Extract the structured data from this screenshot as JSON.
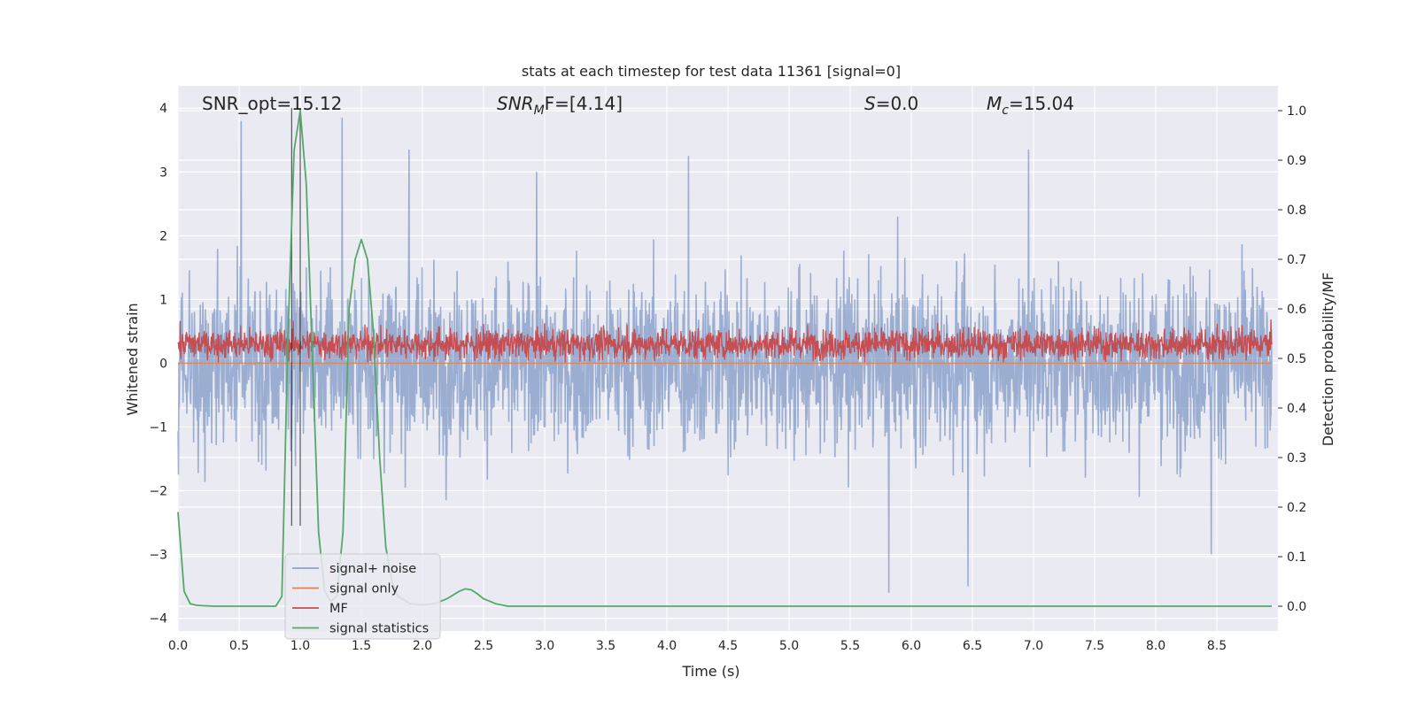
{
  "chart_data": {
    "type": "line",
    "title": "stats at each timestep for test data 11361 [signal=0]",
    "xlabel": "Time (s)",
    "ylabel_left": "Whitened strain",
    "ylabel_right": "Detection probability/MF",
    "xlim": [
      0.0,
      9.0
    ],
    "ylim_left": [
      -4.2,
      4.35
    ],
    "ylim_right": [
      -0.05,
      1.05
    ],
    "x_ticks": [
      "0.0",
      "0.5",
      "1.0",
      "1.5",
      "2.0",
      "2.5",
      "3.0",
      "3.5",
      "4.0",
      "4.5",
      "5.0",
      "5.5",
      "6.0",
      "6.5",
      "7.0",
      "7.5",
      "8.0",
      "8.5"
    ],
    "y_ticks_left": [
      "−4",
      "−3",
      "−2",
      "−1",
      "0",
      "1",
      "2",
      "3",
      "4"
    ],
    "y_ticks_right": [
      "0.0",
      "0.1",
      "0.2",
      "0.3",
      "0.4",
      "0.5",
      "0.6",
      "0.7",
      "0.8",
      "0.9",
      "1.0"
    ],
    "annotations": {
      "snr_opt": "SNR_opt=15.12",
      "snr_mf_main": "SNR",
      "snr_mf_sub": "M",
      "snr_mf_rest": "F=[4.14]",
      "s_sym": "S",
      "s_rest": "=0.0",
      "mc_sym": "M",
      "mc_sub": "c",
      "mc_rest": "=15.04"
    },
    "marker_lines_x": [
      0.93,
      1.0
    ],
    "series": [
      {
        "name": "signal+ noise",
        "color": "#4c72b0",
        "description": "whitened noise, roughly -2 to +2.5 with spikes to about +3.9 and -3.6",
        "spikes": [
          [
            0.52,
            3.8
          ],
          [
            1.35,
            3.85
          ],
          [
            1.9,
            3.35
          ],
          [
            2.95,
            3.0
          ],
          [
            4.2,
            3.25
          ],
          [
            5.85,
            -3.6
          ],
          [
            6.5,
            -3.5
          ],
          [
            7.0,
            3.35
          ],
          [
            8.5,
            -3.0
          ]
        ]
      },
      {
        "name": "signal only",
        "color": "#dd8452",
        "description": "flat near zero (no signal)",
        "values_constant": 0.0
      },
      {
        "name": "MF",
        "color": "#c44e52",
        "description": "matched filter output, about 0.0 to 0.9 on left axis"
      },
      {
        "name": "signal statistics",
        "color": "#55a868",
        "axis": "right",
        "x": [
          0.0,
          0.05,
          0.1,
          0.15,
          0.2,
          0.3,
          0.5,
          0.7,
          0.8,
          0.85,
          0.9,
          0.95,
          1.0,
          1.05,
          1.1,
          1.15,
          1.2,
          1.25,
          1.3,
          1.35,
          1.4,
          1.45,
          1.5,
          1.55,
          1.6,
          1.65,
          1.7,
          1.75,
          1.8,
          1.9,
          2.0,
          2.1,
          2.2,
          2.3,
          2.35,
          2.4,
          2.45,
          2.5,
          2.6,
          2.7,
          3.0,
          5.0,
          7.0,
          8.95
        ],
        "values": [
          0.19,
          0.03,
          0.005,
          0.002,
          0.001,
          0.0,
          0.0,
          0.0,
          0.0,
          0.02,
          0.55,
          0.92,
          1.0,
          0.85,
          0.5,
          0.15,
          0.03,
          0.01,
          0.02,
          0.15,
          0.6,
          0.7,
          0.74,
          0.7,
          0.55,
          0.3,
          0.12,
          0.05,
          0.02,
          0.005,
          0.003,
          0.005,
          0.015,
          0.03,
          0.035,
          0.033,
          0.025,
          0.015,
          0.005,
          0.0,
          0.0,
          0.0,
          0.0,
          0.0
        ]
      }
    ],
    "legend": [
      "signal+ noise",
      "signal only",
      "MF",
      "signal statistics"
    ],
    "legend_location": "lower-left",
    "grid": true,
    "colors": {
      "plot_background": "#eaeaf2",
      "grid": "#ffffff"
    }
  }
}
